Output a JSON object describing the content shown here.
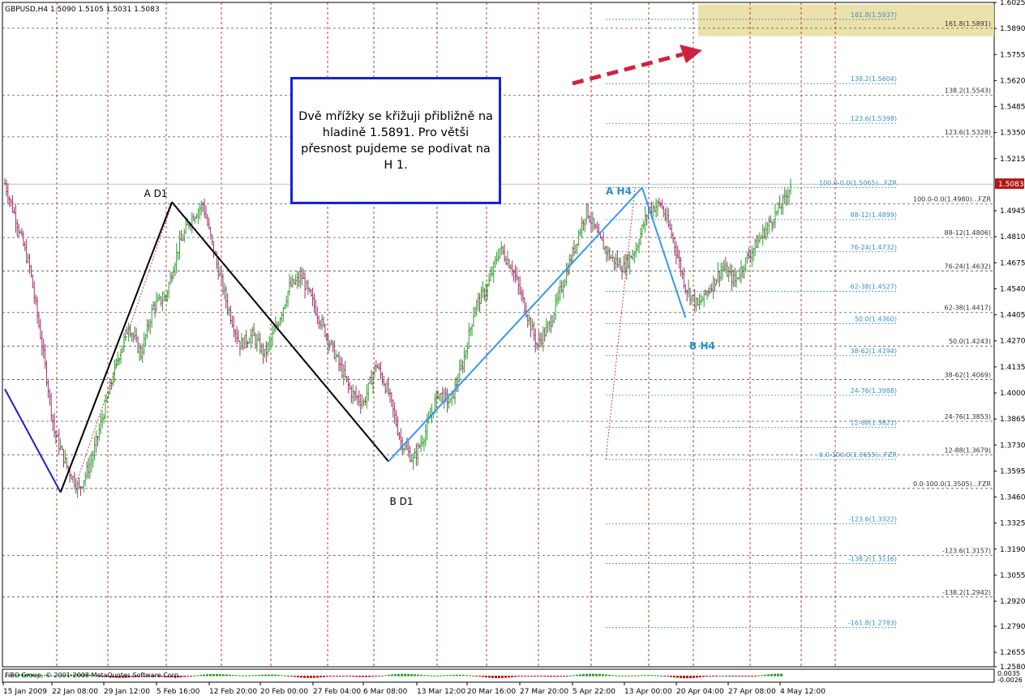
{
  "chart_data": {
    "type": "candlestick",
    "symbol_header": "GBPUSD,H4  1.5090 1.5105 1.5031 1.5083",
    "current_price_label": "1.5083",
    "ylim": [
      1.258,
      1.6025
    ],
    "y_ticks": [
      "1.6025",
      "1.5890",
      "1.5755",
      "1.5620",
      "1.5485",
      "1.5350",
      "1.5215",
      "1.5083",
      "1.4945",
      "1.4810",
      "1.4675",
      "1.4540",
      "1.4405",
      "1.4270",
      "1.4135",
      "1.4000",
      "1.3865",
      "1.3730",
      "1.3595",
      "1.3460",
      "1.3325",
      "1.3190",
      "1.3055",
      "1.2920",
      "1.2790",
      "1.2655",
      "1.2580"
    ],
    "x_ticks": [
      "15 Jan 2009",
      "22 Jan 08:00",
      "29 Jan 12:00",
      "5 Feb 16:00",
      "12 Feb 20:00",
      "20 Feb 00:00",
      "27 Feb 04:00",
      "6 Mar 08:00",
      "13 Mar 12:00",
      "20 Mar 16:00",
      "27 Mar 20:00",
      "5 Apr 22:00",
      "13 Apr 00:00",
      "20 Apr 04:00",
      "27 Apr 08:00",
      "4 May 12:00"
    ],
    "waypoints": [
      {
        "t": 0,
        "p": 1.5085
      },
      {
        "t": 2,
        "p": 1.488
      },
      {
        "t": 4,
        "p": 1.465
      },
      {
        "t": 6,
        "p": 1.425
      },
      {
        "t": 8,
        "p": 1.38
      },
      {
        "t": 10,
        "p": 1.362
      },
      {
        "t": 12,
        "p": 1.35
      },
      {
        "t": 14,
        "p": 1.365
      },
      {
        "t": 16,
        "p": 1.39
      },
      {
        "t": 18,
        "p": 1.415
      },
      {
        "t": 20,
        "p": 1.435
      },
      {
        "t": 22,
        "p": 1.42
      },
      {
        "t": 24,
        "p": 1.445
      },
      {
        "t": 26,
        "p": 1.45
      },
      {
        "t": 28,
        "p": 1.475
      },
      {
        "t": 30,
        "p": 1.49
      },
      {
        "t": 32,
        "p": 1.498
      },
      {
        "t": 34,
        "p": 1.47
      },
      {
        "t": 36,
        "p": 1.445
      },
      {
        "t": 38,
        "p": 1.425
      },
      {
        "t": 40,
        "p": 1.43
      },
      {
        "t": 42,
        "p": 1.42
      },
      {
        "t": 44,
        "p": 1.435
      },
      {
        "t": 46,
        "p": 1.455
      },
      {
        "t": 48,
        "p": 1.46
      },
      {
        "t": 50,
        "p": 1.445
      },
      {
        "t": 52,
        "p": 1.43
      },
      {
        "t": 54,
        "p": 1.415
      },
      {
        "t": 56,
        "p": 1.4
      },
      {
        "t": 58,
        "p": 1.395
      },
      {
        "t": 60,
        "p": 1.415
      },
      {
        "t": 62,
        "p": 1.4
      },
      {
        "t": 64,
        "p": 1.375
      },
      {
        "t": 66,
        "p": 1.365
      },
      {
        "t": 68,
        "p": 1.38
      },
      {
        "t": 70,
        "p": 1.4
      },
      {
        "t": 72,
        "p": 1.395
      },
      {
        "t": 74,
        "p": 1.415
      },
      {
        "t": 76,
        "p": 1.445
      },
      {
        "t": 78,
        "p": 1.455
      },
      {
        "t": 80,
        "p": 1.475
      },
      {
        "t": 82,
        "p": 1.465
      },
      {
        "t": 84,
        "p": 1.445
      },
      {
        "t": 86,
        "p": 1.425
      },
      {
        "t": 88,
        "p": 1.435
      },
      {
        "t": 90,
        "p": 1.455
      },
      {
        "t": 92,
        "p": 1.475
      },
      {
        "t": 94,
        "p": 1.495
      },
      {
        "t": 96,
        "p": 1.48
      },
      {
        "t": 98,
        "p": 1.47
      },
      {
        "t": 100,
        "p": 1.465
      },
      {
        "t": 102,
        "p": 1.475
      },
      {
        "t": 104,
        "p": 1.495
      },
      {
        "t": 106,
        "p": 1.498
      },
      {
        "t": 108,
        "p": 1.48
      },
      {
        "t": 110,
        "p": 1.455
      },
      {
        "t": 112,
        "p": 1.445
      },
      {
        "t": 114,
        "p": 1.455
      },
      {
        "t": 116,
        "p": 1.465
      },
      {
        "t": 118,
        "p": 1.458
      },
      {
        "t": 120,
        "p": 1.47
      },
      {
        "t": 122,
        "p": 1.48
      },
      {
        "t": 124,
        "p": 1.49
      },
      {
        "t": 126,
        "p": 1.5
      },
      {
        "t": 127,
        "p": 1.5083
      }
    ],
    "swing_lines": [
      {
        "name": "down-leg-blue",
        "color": "#1c1ccc",
        "points": [
          {
            "t": 0,
            "p": 1.402
          },
          {
            "t": 9,
            "p": 1.3485
          }
        ]
      },
      {
        "name": "leg-to-A-D1",
        "color": "#000000",
        "points": [
          {
            "t": 9,
            "p": 1.3485
          },
          {
            "t": 27,
            "p": 1.499
          }
        ]
      },
      {
        "name": "leg-A-D1-to-B-D1",
        "color": "#000000",
        "points": [
          {
            "t": 27,
            "p": 1.499
          },
          {
            "t": 62,
            "p": 1.3645
          }
        ]
      },
      {
        "name": "leg-B-D1-to-A-H4",
        "color": "#3399ee",
        "points": [
          {
            "t": 62,
            "p": 1.3645
          },
          {
            "t": 103,
            "p": 1.5065
          }
        ]
      },
      {
        "name": "leg-A-H4-to-B-H4",
        "color": "#3399ee",
        "points": [
          {
            "t": 103,
            "p": 1.5065
          },
          {
            "t": 110,
            "p": 1.439
          }
        ]
      }
    ],
    "point_labels": [
      {
        "text": "A D1",
        "color": "#000000"
      },
      {
        "text": "B D1",
        "color": "#000000"
      },
      {
        "text": "A H4",
        "color": "#2a8fc8"
      },
      {
        "text": "B H4",
        "color": "#2a8fc8"
      }
    ],
    "fib_grid_d1": [
      {
        "label": "161.8(1.5891)",
        "p": 1.5891
      },
      {
        "label": "138.2(1.5543)",
        "p": 1.5543
      },
      {
        "label": "123.6(1.5328)",
        "p": 1.5328
      },
      {
        "label": "100.0-0.0(1.4980)...FZR",
        "p": 1.498
      },
      {
        "label": "88-12(1.4806)",
        "p": 1.4806
      },
      {
        "label": "76-24(1.4632)",
        "p": 1.4632
      },
      {
        "label": "62-38(1.4417)",
        "p": 1.4417
      },
      {
        "label": "50.0(1.4243)",
        "p": 1.4243
      },
      {
        "label": "38-62(1.4069)",
        "p": 1.4069
      },
      {
        "label": "24-76(1.3853)",
        "p": 1.3853
      },
      {
        "label": "12-88(1.3679)",
        "p": 1.3679
      },
      {
        "label": "0.0-100.0(1.3505)...FZR",
        "p": 1.3505
      },
      {
        "label": "-123.6(1.3157)",
        "p": 1.3157
      },
      {
        "label": "-138.2(1.2942)",
        "p": 1.2942
      }
    ],
    "fib_grid_h4": [
      {
        "label": "161.8(1.5937)",
        "p": 1.5937
      },
      {
        "label": "138.2(1.5604)",
        "p": 1.5604
      },
      {
        "label": "123.6(1.5398)",
        "p": 1.5398
      },
      {
        "label": "100.0-0.0(1.5065)...FZR",
        "p": 1.5065
      },
      {
        "label": "88-12(1.4899)",
        "p": 1.4899
      },
      {
        "label": "76-24(1.4732)",
        "p": 1.4732
      },
      {
        "label": "62-38(1.4527)",
        "p": 1.4527
      },
      {
        "label": "50.0(1.4360)",
        "p": 1.436
      },
      {
        "label": "38-62(1.4194)",
        "p": 1.4194
      },
      {
        "label": "24-76(1.3988)",
        "p": 1.3988
      },
      {
        "label": "12-88(1.3821)",
        "p": 1.3821
      },
      {
        "label": "0.0-100.0(1.3655)...FZR",
        "p": 1.3655
      },
      {
        "label": "-123.6(1.3322)",
        "p": 1.3322
      },
      {
        "label": "-138.2(1.3116)",
        "p": 1.3116
      },
      {
        "label": "-161.8(1.2783)",
        "p": 1.2783
      }
    ],
    "target_zone": {
      "from": 1.585,
      "to": 1.6015,
      "color": "#e8dc9c"
    },
    "indicator_text": "FiBO Group, © 2001-2008 MetaQuotes Software Corp.",
    "indicator_values": [
      "0.0035",
      "-0.0026"
    ],
    "grid": true,
    "colors": {
      "bull": "#2f9e2f",
      "bear": "#a0306a",
      "wick": "#555555",
      "grid": "#a01010",
      "fib_d1": "#555555",
      "fib_h4": "#3a8fc0"
    }
  },
  "annotation": {
    "text": "Dvě mřížky se křižuji přibližně na hladině 1.5891. Pro větši přesnost pujdeme se podivat na H 1.",
    "box_color": "#1522d6"
  },
  "arrow": {
    "color": "#d0223e"
  }
}
